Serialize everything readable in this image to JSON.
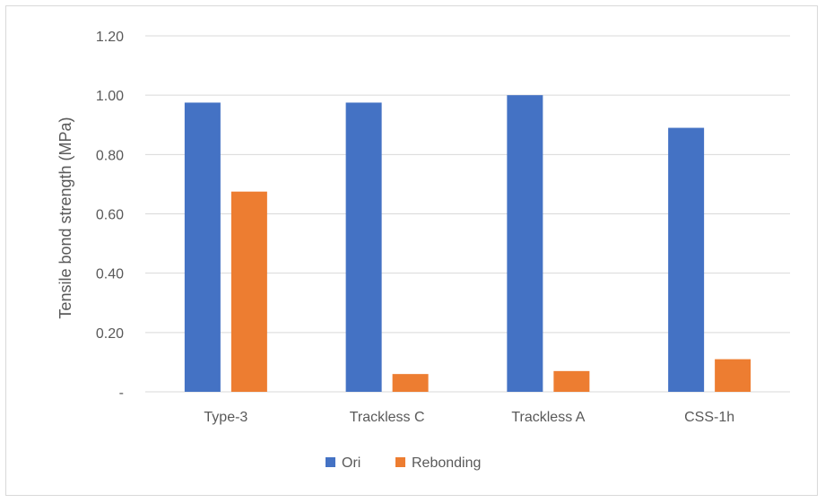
{
  "chart_data": {
    "type": "bar",
    "title": "",
    "xlabel": "",
    "ylabel": "Tensile bond strength (MPa)",
    "categories": [
      "Type-3",
      "Trackless C",
      "Trackless A",
      "CSS-1h"
    ],
    "series": [
      {
        "name": "Ori",
        "color": "#4472c4",
        "values": [
          0.975,
          0.975,
          1.0,
          0.89
        ]
      },
      {
        "name": "Rebonding",
        "color": "#ed7d31",
        "values": [
          0.675,
          0.06,
          0.07,
          0.11
        ]
      }
    ],
    "ylim": [
      0,
      1.2
    ],
    "yticks": [
      0,
      0.2,
      0.4,
      0.6,
      0.8,
      1.0,
      1.2
    ],
    "ytick_labels": [
      "-",
      "0.20",
      "0.40",
      "0.60",
      "0.80",
      "1.00",
      "1.20"
    ],
    "grid": true,
    "legend_position": "bottom"
  }
}
